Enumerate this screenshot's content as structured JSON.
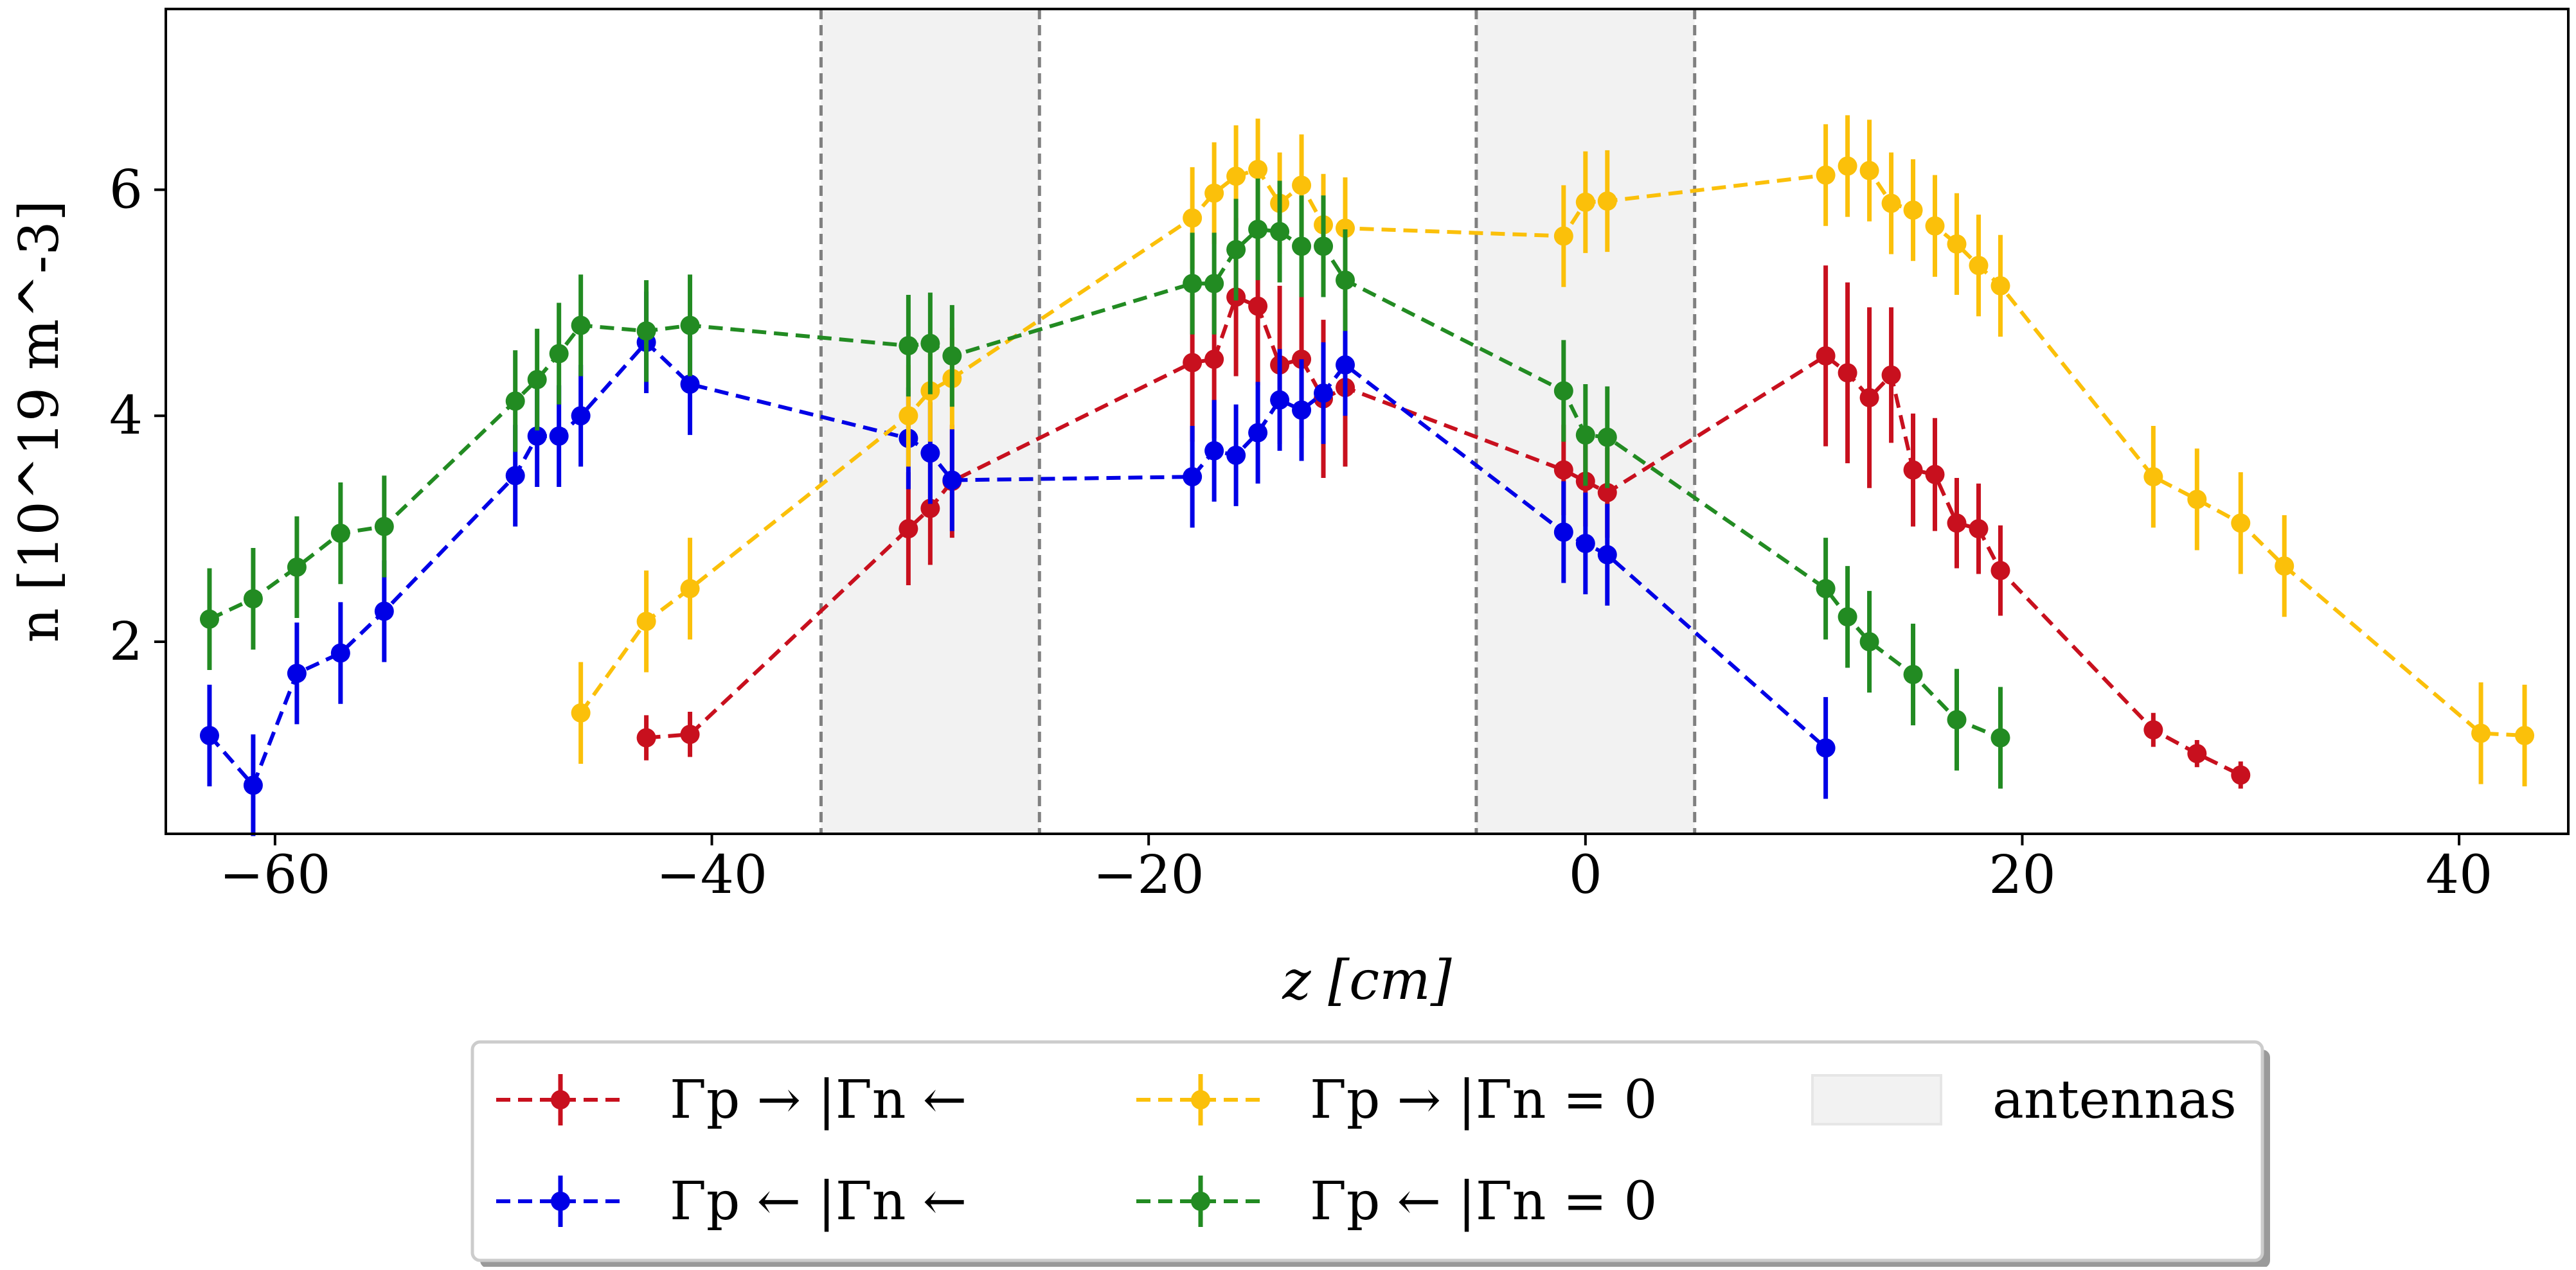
{
  "chart_data": {
    "type": "line",
    "title": "",
    "xlabel": "z [cm]",
    "ylabel": "n [10^19 m^-3]",
    "xlim": [
      -65,
      45
    ],
    "ylim": [
      0.3,
      7.6
    ],
    "xticks": [
      -60,
      -40,
      -20,
      0,
      20,
      40
    ],
    "xtick_labels": [
      "−60",
      "−40",
      "−20",
      "0",
      "20",
      "40"
    ],
    "yticks": [
      2,
      4,
      6
    ],
    "ytick_labels": [
      "2",
      "4",
      "6"
    ],
    "grid": false,
    "shaded_regions": [
      {
        "label": "antennas",
        "x0": -35,
        "x1": -25
      },
      {
        "label": "antennas",
        "x0": -5,
        "x1": 5
      }
    ],
    "vlines": [
      -35,
      -25,
      -5,
      5
    ],
    "legend_position": "bottom-center, outside plot",
    "series": [
      {
        "name": "Γp → |Γn ←",
        "color": "#c8101e",
        "x": [
          -43,
          -41,
          -31,
          -30,
          -29,
          -18,
          -17,
          -16,
          -15,
          -14,
          -13,
          -12,
          -11,
          -1,
          0,
          1,
          11,
          12,
          13,
          14,
          15,
          16,
          17,
          18,
          19,
          26,
          28,
          30
        ],
        "y": [
          1.15,
          1.18,
          3.0,
          3.18,
          3.42,
          4.47,
          4.5,
          5.05,
          4.97,
          4.45,
          4.5,
          4.15,
          4.25,
          3.52,
          3.42,
          3.32,
          4.53,
          4.38,
          4.16,
          4.36,
          3.52,
          3.48,
          3.05,
          3.0,
          2.63,
          1.22,
          1.01,
          0.82
        ],
        "err": [
          0.2,
          0.2,
          0.5,
          0.5,
          0.5,
          0.7,
          0.7,
          0.7,
          0.7,
          0.7,
          0.7,
          0.7,
          0.7,
          0.4,
          0.4,
          0.4,
          0.8,
          0.8,
          0.8,
          0.6,
          0.5,
          0.5,
          0.4,
          0.4,
          0.4,
          0.15,
          0.12,
          0.12
        ]
      },
      {
        "name": "Γp ← |Γn ←",
        "color": "#0000e6",
        "x": [
          -63,
          -61,
          -59,
          -57,
          -55,
          -49,
          -48,
          -47,
          -46,
          -43,
          -41,
          -31,
          -30,
          -29,
          -18,
          -17,
          -16,
          -15,
          -14,
          -13,
          -12,
          -11,
          -1,
          0,
          1,
          11
        ],
        "y": [
          1.17,
          0.73,
          1.72,
          1.9,
          2.27,
          3.47,
          3.82,
          3.82,
          4.0,
          4.65,
          4.28,
          3.8,
          3.67,
          3.43,
          3.46,
          3.69,
          3.65,
          3.85,
          4.14,
          4.05,
          4.2,
          4.45,
          2.97,
          2.87,
          2.77,
          1.06
        ]
      },
      {
        "name": "Γp → |Γn = 0",
        "color": "#fbc00a",
        "x": [
          -46,
          -43,
          -41,
          -31,
          -30,
          -29,
          -18,
          -17,
          -16,
          -15,
          -14,
          -13,
          -12,
          -11,
          -1,
          0,
          1,
          11,
          12,
          13,
          14,
          15,
          16,
          17,
          18,
          19,
          26,
          28,
          30,
          32,
          41,
          43
        ],
        "y": [
          1.37,
          2.18,
          2.47,
          4.0,
          4.22,
          4.33,
          5.75,
          5.97,
          6.12,
          6.18,
          5.88,
          6.04,
          5.69,
          5.66,
          5.59,
          5.89,
          5.9,
          6.13,
          6.21,
          6.17,
          5.88,
          5.82,
          5.68,
          5.52,
          5.33,
          5.15,
          3.46,
          3.26,
          3.05,
          2.67,
          1.19,
          1.17
        ]
      },
      {
        "name": "Γp ← |Γn = 0",
        "color": "#228b22",
        "x": [
          -63,
          -61,
          -59,
          -57,
          -55,
          -49,
          -48,
          -47,
          -46,
          -43,
          -41,
          -31,
          -30,
          -29,
          -18,
          -17,
          -16,
          -15,
          -14,
          -13,
          -12,
          -11,
          -1,
          0,
          1,
          11,
          12,
          13,
          15,
          17,
          19
        ],
        "y": [
          2.2,
          2.38,
          2.66,
          2.96,
          3.02,
          4.13,
          4.32,
          4.55,
          4.8,
          4.75,
          4.8,
          4.62,
          4.64,
          4.53,
          5.17,
          5.17,
          5.47,
          5.65,
          5.63,
          5.5,
          5.5,
          5.2,
          4.22,
          3.83,
          3.81,
          2.47,
          2.22,
          2.0,
          1.71,
          1.31,
          1.15
        ]
      }
    ]
  },
  "legend": {
    "items": [
      {
        "label": "Γp → |Γn ←",
        "color": "#c8101e"
      },
      {
        "label": "Γp ← |Γn ←",
        "color": "#0000e6"
      },
      {
        "label": "Γp → |Γn = 0",
        "color": "#fbc00a"
      },
      {
        "label": "Γp ← |Γn = 0",
        "color": "#228b22"
      },
      {
        "label": "antennas",
        "color": "#f2f2f2"
      }
    ]
  }
}
